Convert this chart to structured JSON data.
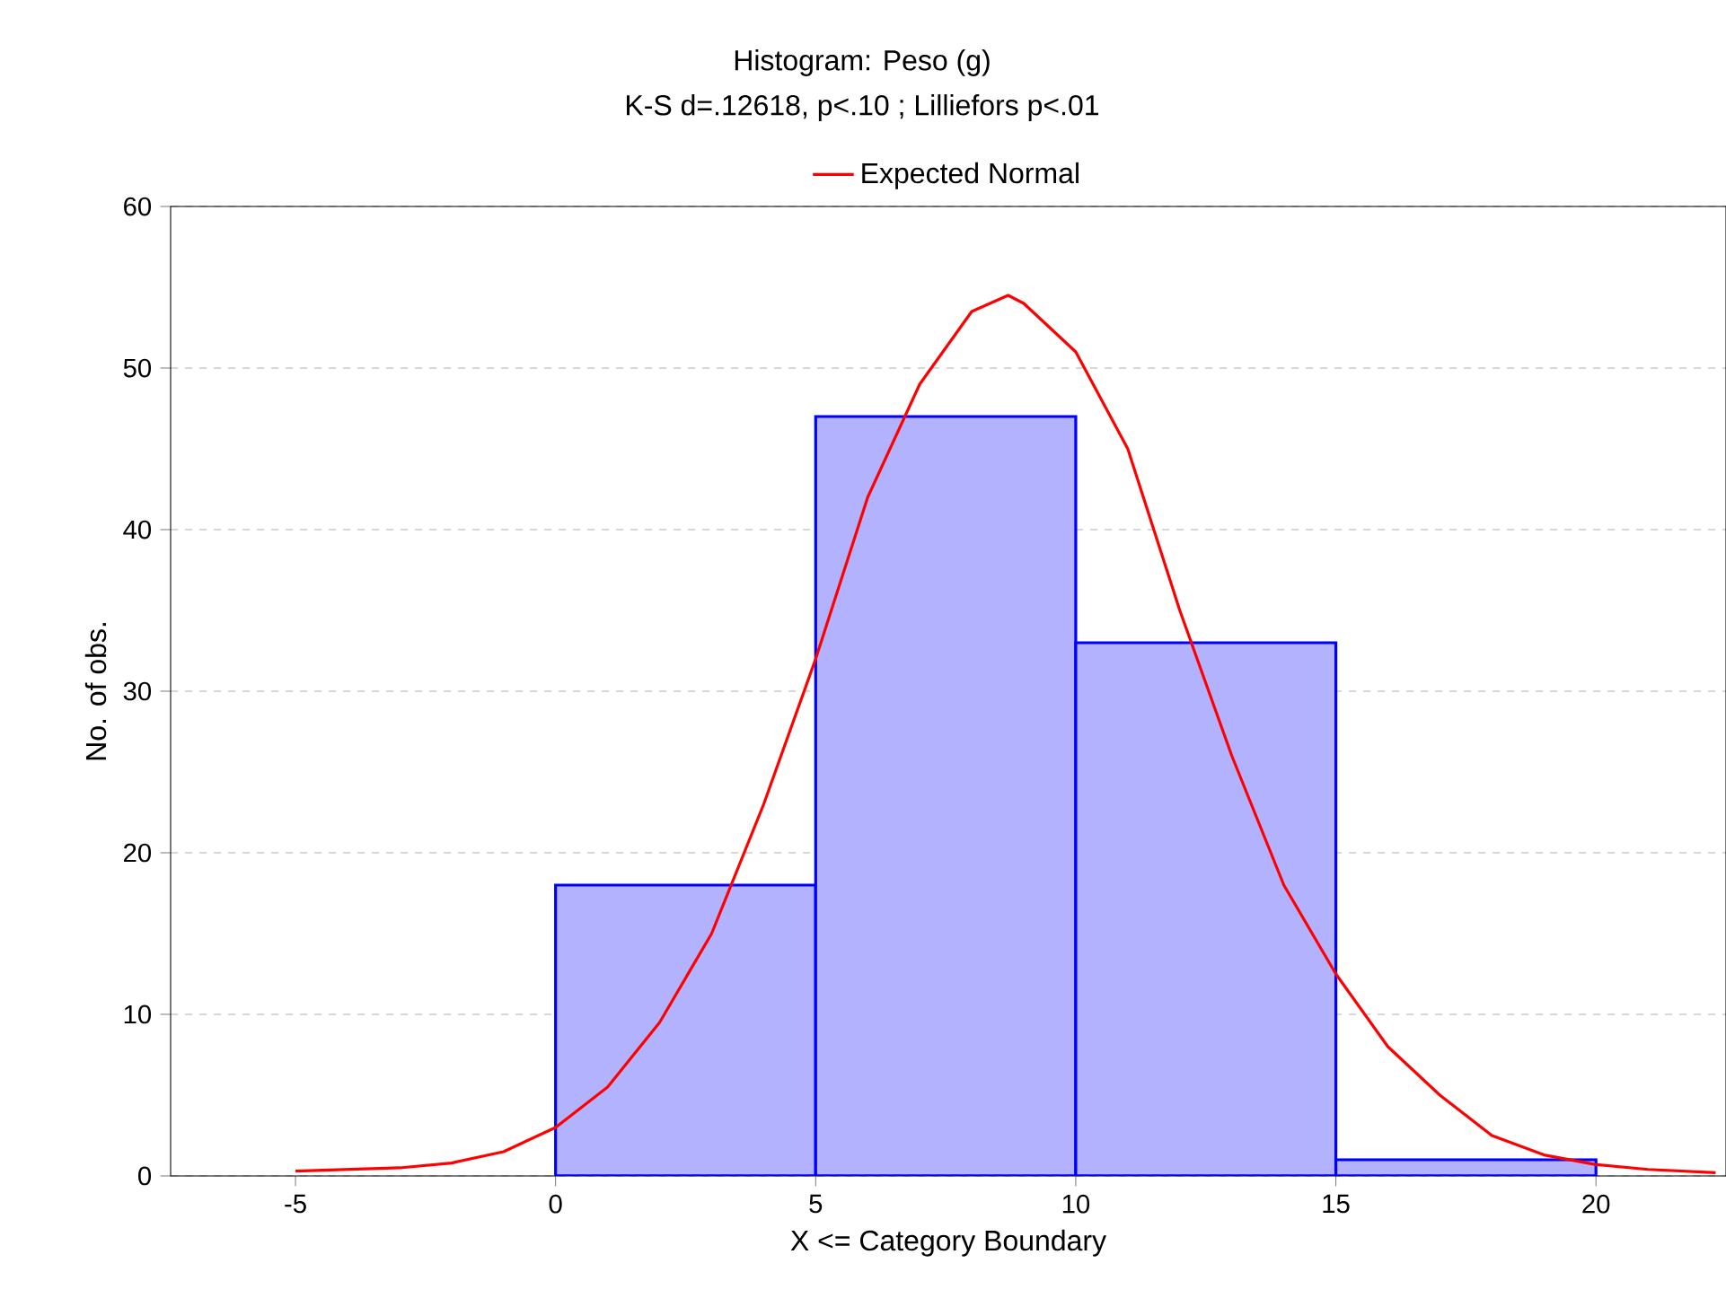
{
  "chart_data": {
    "type": "histogram",
    "title": "Histogram: Peso (g)",
    "subtitle": "K-S d=.12618, p<.10 ; Lilliefors p<.01",
    "xlabel": "X <= Category Boundary",
    "ylabel": "No. of obs.",
    "xlim": [
      -7.4,
      22.5
    ],
    "ylim": [
      0,
      60
    ],
    "xticks": [
      -5,
      0,
      5,
      10,
      15,
      20
    ],
    "yticks": [
      0,
      10,
      20,
      30,
      40,
      50,
      60
    ],
    "grid": "y",
    "legend": "top",
    "series": [
      {
        "color": "#0000ff",
        "bins": [
          0,
          5,
          10,
          15,
          20
        ],
        "values": [
          18,
          47,
          33,
          1
        ]
      },
      {
        "type": "line",
        "name": "Expected Normal",
        "color": "#ff0000",
        "x": [
          -5,
          -3,
          -2,
          -1,
          0,
          1,
          2,
          3,
          4,
          5,
          6,
          7,
          8,
          8.7,
          9,
          10,
          11,
          12,
          13,
          14,
          15,
          16,
          17,
          18,
          19,
          20,
          21,
          22.3
        ],
        "values": [
          0.3,
          0.5,
          0.8,
          1.5,
          3,
          5.5,
          9.5,
          15,
          23,
          32,
          42,
          49,
          53.5,
          54.5,
          54,
          51,
          45,
          35,
          26,
          18,
          12.5,
          8,
          5,
          2.5,
          1.3,
          0.7,
          0.4,
          0.2
        ]
      }
    ]
  }
}
